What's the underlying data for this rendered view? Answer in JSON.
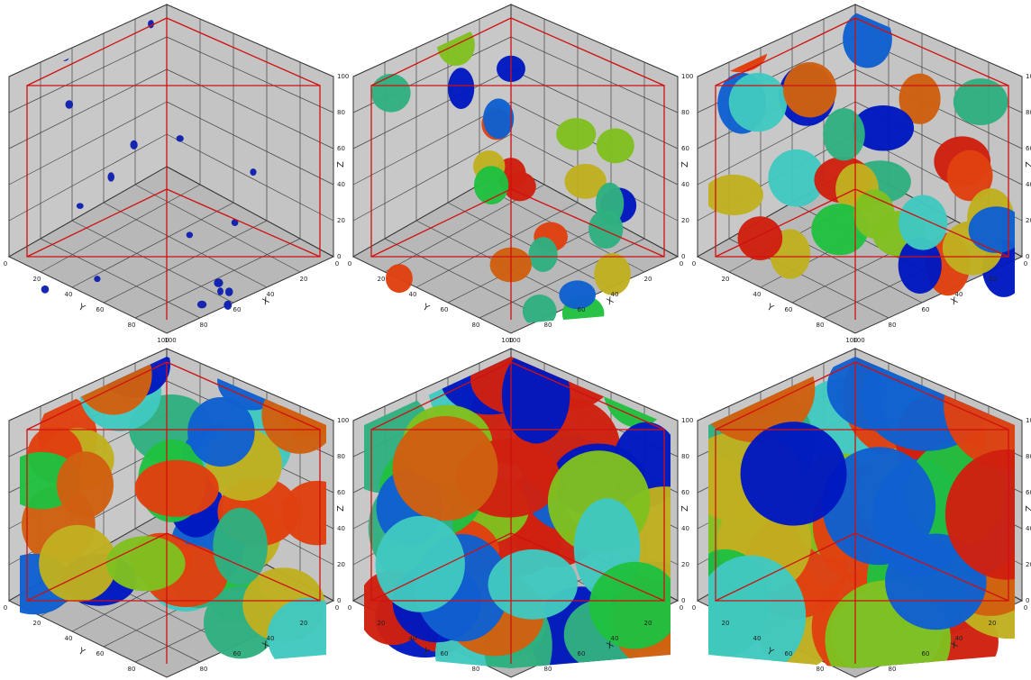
{
  "axis_labels": {
    "x": "X",
    "y": "Y",
    "z": "Z"
  },
  "ticks": [
    0,
    20,
    40,
    60,
    80,
    100
  ]
}
